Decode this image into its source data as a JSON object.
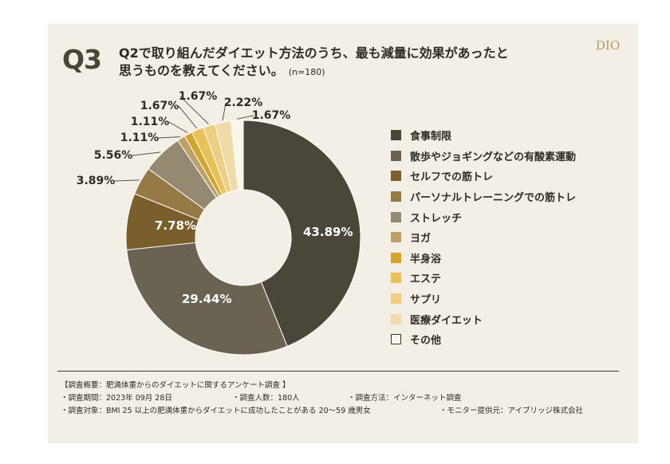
{
  "question": "Q3",
  "title_line1": "Q2で取り組んだダイエット方法のうち、最も減量に効果があったと",
  "title_line2": "思うものを教えてください。",
  "n_label": "(n=180)",
  "logo": "DIO",
  "chart_data": {
    "type": "pie",
    "donut": true,
    "categories": [
      "食事制限",
      "散歩やジョギングなどの有酸素運動",
      "セルフでの筋トレ",
      "パーソナルトレーニングでの筋トレ",
      "ストレッチ",
      "ヨガ",
      "半身浴",
      "エステ",
      "サプリ",
      "医療ダイエット",
      "その他"
    ],
    "values": [
      43.89,
      29.44,
      7.78,
      3.89,
      5.56,
      1.11,
      1.11,
      1.67,
      1.67,
      2.22,
      1.67
    ],
    "labels": [
      "43.89%",
      "29.44%",
      "7.78%",
      "3.89%",
      "5.56%",
      "1.11%",
      "1.11%",
      "1.67%",
      "1.67%",
      "2.22%",
      "1.67%"
    ],
    "colors": [
      "#4b463a",
      "#6a6352",
      "#7a5f2c",
      "#967a45",
      "#948971",
      "#bca06a",
      "#d4a52c",
      "#e7c15a",
      "#eecf82",
      "#f0dba9",
      "#fbf6ea"
    ],
    "legend_position": "right"
  },
  "notes": {
    "heading": "【調査概要：肥満体重からのダイエットに関するアンケート調査 】",
    "period": "・調査期間：2023年 09月 28日",
    "count": "・調査人数：180人",
    "method": "・調査方法：インターネット調査",
    "target": "・調査対象：BMI 25 以上の肥満体重からダイエットに成功したことがある 20～59 歳男女",
    "provider": "・モニター提供元：アイブリッジ株式会社"
  }
}
